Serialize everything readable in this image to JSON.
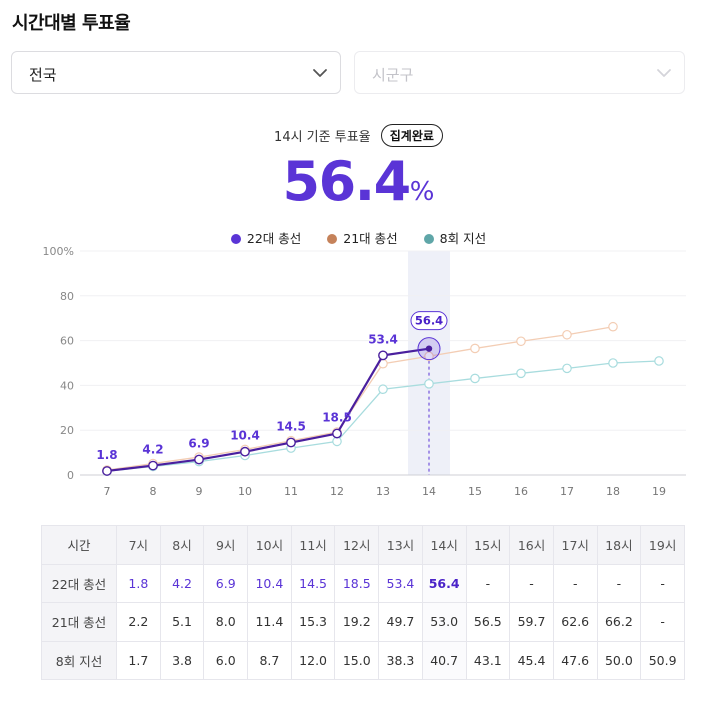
{
  "page_title": "시간대별 투표율",
  "region_select": {
    "value": "전국",
    "icon": "chevron-down-icon"
  },
  "district_select": {
    "placeholder": "시군구",
    "icon": "chevron-down-icon"
  },
  "summary": {
    "label": "14시 기준 투표율",
    "badge": "집계완료",
    "value": "56.4",
    "unit": "%"
  },
  "colors": {
    "s22": "#5a34d6",
    "s22_line": "#4a1f9e",
    "s21": "#c5825a",
    "s21_line": "#f3cdb4",
    "s8": "#5fa6a8",
    "s8_line": "#a8dcde",
    "highlight": "#eef0f8"
  },
  "chart_data": {
    "type": "line",
    "x": [
      7,
      8,
      9,
      10,
      11,
      12,
      13,
      14,
      15,
      16,
      17,
      18,
      19
    ],
    "ylim": [
      0,
      100
    ],
    "yticks": [
      "0",
      "20",
      "40",
      "60",
      "80",
      "100%"
    ],
    "xticks": [
      "7",
      "8",
      "9",
      "10",
      "11",
      "12",
      "13",
      "14",
      "15",
      "16",
      "17",
      "18",
      "19"
    ],
    "highlight_x": 14,
    "grid": true,
    "legend_position": "top-center",
    "series": [
      {
        "name": "22대 총선",
        "values": [
          1.8,
          4.2,
          6.9,
          10.4,
          14.5,
          18.5,
          53.4,
          56.4,
          null,
          null,
          null,
          null,
          null
        ]
      },
      {
        "name": "21대 총선",
        "values": [
          2.2,
          5.1,
          8.0,
          11.4,
          15.3,
          19.2,
          49.7,
          53.0,
          56.5,
          59.7,
          62.6,
          66.2,
          null
        ]
      },
      {
        "name": "8회 지선",
        "values": [
          1.7,
          3.8,
          6.0,
          8.7,
          12.0,
          15.0,
          38.3,
          40.7,
          43.1,
          45.4,
          47.6,
          50.0,
          50.9
        ]
      }
    ],
    "data_labels": [
      "1.8",
      "4.2",
      "6.9",
      "10.4",
      "14.5",
      "18.5",
      "53.4",
      "56.4"
    ]
  },
  "table": {
    "header": [
      "시간",
      "7시",
      "8시",
      "9시",
      "10시",
      "11시",
      "12시",
      "13시",
      "14시",
      "15시",
      "16시",
      "17시",
      "18시",
      "19시"
    ],
    "rows": [
      {
        "label": "22대 총선",
        "cells": [
          "1.8",
          "4.2",
          "6.9",
          "10.4",
          "14.5",
          "18.5",
          "53.4",
          "56.4",
          "-",
          "-",
          "-",
          "-",
          "-"
        ]
      },
      {
        "label": "21대 총선",
        "cells": [
          "2.2",
          "5.1",
          "8.0",
          "11.4",
          "15.3",
          "19.2",
          "49.7",
          "53.0",
          "56.5",
          "59.7",
          "62.6",
          "66.2",
          "-"
        ]
      },
      {
        "label": "8회 지선",
        "cells": [
          "1.7",
          "3.8",
          "6.0",
          "8.7",
          "12.0",
          "15.0",
          "38.3",
          "40.7",
          "43.1",
          "45.4",
          "47.6",
          "50.0",
          "50.9"
        ]
      }
    ]
  }
}
